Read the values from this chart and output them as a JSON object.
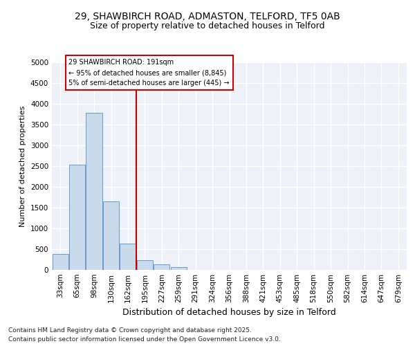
{
  "title_line1": "29, SHAWBIRCH ROAD, ADMASTON, TELFORD, TF5 0AB",
  "title_line2": "Size of property relative to detached houses in Telford",
  "xlabel": "Distribution of detached houses by size in Telford",
  "ylabel": "Number of detached properties",
  "categories": [
    "33sqm",
    "65sqm",
    "98sqm",
    "130sqm",
    "162sqm",
    "195sqm",
    "227sqm",
    "259sqm",
    "291sqm",
    "324sqm",
    "356sqm",
    "388sqm",
    "421sqm",
    "453sqm",
    "485sqm",
    "518sqm",
    "550sqm",
    "582sqm",
    "614sqm",
    "647sqm",
    "679sqm"
  ],
  "values": [
    380,
    2540,
    3780,
    1650,
    630,
    240,
    130,
    60,
    0,
    0,
    0,
    0,
    0,
    0,
    0,
    0,
    0,
    0,
    0,
    0,
    0
  ],
  "bar_color": "#c9daea",
  "bar_edge_color": "#6699cc",
  "vline_color": "#cc0000",
  "vline_x_index": 5,
  "annotation_line1": "29 SHAWBIRCH ROAD: 191sqm",
  "annotation_line2": "← 95% of detached houses are smaller (8,845)",
  "annotation_line3": "5% of semi-detached houses are larger (445) →",
  "annotation_box_color": "#cc0000",
  "ylim": [
    0,
    5000
  ],
  "yticks": [
    0,
    500,
    1000,
    1500,
    2000,
    2500,
    3000,
    3500,
    4000,
    4500,
    5000
  ],
  "plot_bg_color": "#eef2f8",
  "grid_color": "#ffffff",
  "fig_bg_color": "#ffffff",
  "footer_line1": "Contains HM Land Registry data © Crown copyright and database right 2025.",
  "footer_line2": "Contains public sector information licensed under the Open Government Licence v3.0.",
  "title1_fontsize": 10,
  "title2_fontsize": 9,
  "ylabel_fontsize": 8,
  "xlabel_fontsize": 9,
  "tick_fontsize": 7.5,
  "footer_fontsize": 6.5
}
